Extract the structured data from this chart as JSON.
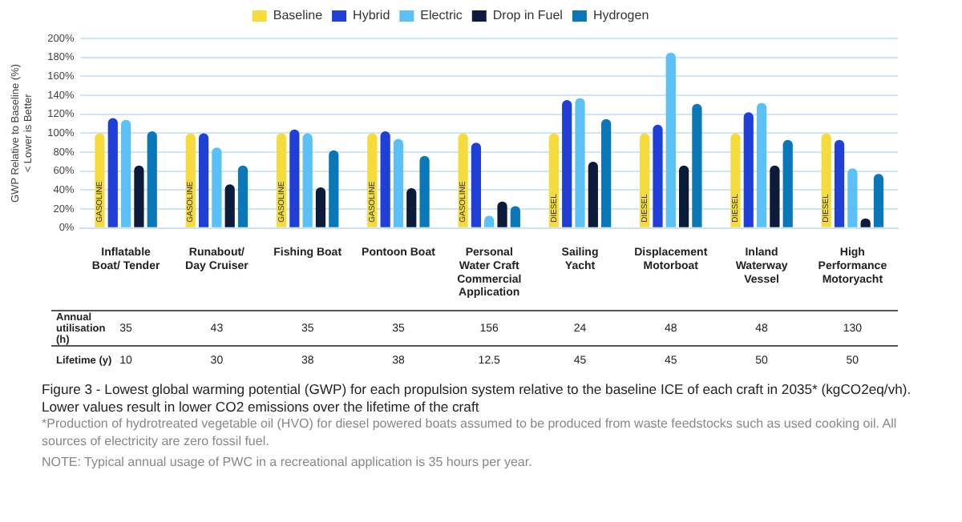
{
  "chart_data": {
    "type": "bar",
    "title": "Figure 3 - Lowest global warming potential (GWP) for each propulsion system relative to the baseline ICE of each craft in 2035* (kgCO2eq/vh). Lower values result in lower CO2 emissions over the lifetime of the craft",
    "ylabel": "GWP Relative to Baseline (%)\n< Lower is Better",
    "categories": [
      "Inflatable Boat/ Tender",
      "Runabout/ Day Cruiser",
      "Fishing Boat",
      "Pontoon Boat",
      "Personal Water Craft Commercial Application",
      "Sailing Yacht",
      "Displacement Motorboat",
      "Inland Waterway Vessel",
      "High Performance Motoryacht"
    ],
    "series": [
      {
        "name": "Baseline",
        "color": "#f5dc3c",
        "values": [
          100,
          100,
          100,
          100,
          100,
          100,
          100,
          100,
          100
        ],
        "value_labels": [
          "GASOLINE",
          "GASOLINE",
          "GASOLINE",
          "GASOLINE",
          "GASOLINE",
          "DIESEL",
          "DIESEL",
          "DIESEL",
          "DIESEL"
        ]
      },
      {
        "name": "Hybrid",
        "color": "#1f3fd6",
        "values": [
          116,
          100,
          104,
          102,
          90,
          135,
          109,
          122,
          93
        ]
      },
      {
        "name": "Electric",
        "color": "#5bc0f5",
        "values": [
          114,
          85,
          100,
          94,
          13,
          137,
          185,
          132,
          63
        ]
      },
      {
        "name": "Drop in Fuel",
        "color": "#0d1b3a",
        "values": [
          66,
          46,
          43,
          42,
          28,
          70,
          66,
          66,
          10
        ]
      },
      {
        "name": "Hydrogen",
        "color": "#0a78b8",
        "values": [
          102,
          66,
          82,
          76,
          23,
          115,
          131,
          93,
          57
        ]
      }
    ],
    "ylim": [
      0,
      200
    ],
    "yticks": [
      {
        "value": 0,
        "label": "0%"
      },
      {
        "value": 20,
        "label": "20%"
      },
      {
        "value": 40,
        "label": "40%"
      },
      {
        "value": 60,
        "label": "60%"
      },
      {
        "value": 80,
        "label": "80%"
      },
      {
        "value": 100,
        "label": "100%"
      },
      {
        "value": 120,
        "label": "120%"
      },
      {
        "value": 140,
        "label": "140%"
      },
      {
        "value": 160,
        "label": "160%"
      },
      {
        "value": 180,
        "label": "180%"
      },
      {
        "value": 200,
        "label": "200%"
      }
    ],
    "grid": "y",
    "legend": "top",
    "annotations": [
      "Annual utilisation (h)",
      "35",
      "43",
      "35",
      "35",
      "156",
      "24",
      "48",
      "48",
      "130",
      "Lifetime (y)",
      "10",
      "30",
      "38",
      "38",
      "12.5",
      "45",
      "45",
      "50",
      "50",
      "*Production of hydrotreated vegetable oil (HVO) for diesel powered boats assumed to be produced from waste feedstocks such as used cooking oil.  All sources of electricity are zero fossil fuel.",
      "NOTE: Typical annual usage of PWC in a recreational application is 35 hours per year."
    ]
  }
}
